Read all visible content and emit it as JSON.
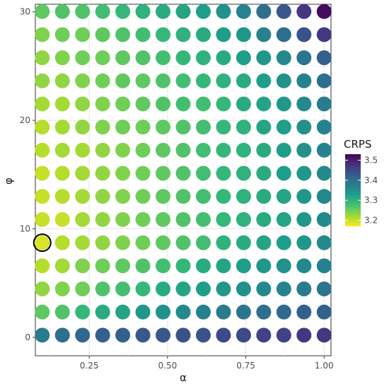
{
  "chart_data": {
    "type": "scatter",
    "xlabel": "α",
    "ylabel": "φ",
    "xlim": [
      0.078,
      1.022
    ],
    "ylim": [
      -1.7,
      30.7
    ],
    "x_ticks": [
      0.25,
      0.5,
      0.75,
      1.0
    ],
    "x_tick_labels": [
      "0.25",
      "0.50",
      "0.75",
      "1.00"
    ],
    "y_ticks": [
      0,
      10,
      20,
      30
    ],
    "y_tick_labels": [
      "0",
      "10",
      "20",
      "30"
    ],
    "grid": true,
    "x_values": [
      0.1,
      0.1643,
      0.2286,
      0.2929,
      0.3571,
      0.4214,
      0.4857,
      0.55,
      0.6143,
      0.6786,
      0.7429,
      0.8071,
      0.8714,
      0.9357,
      1.0
    ],
    "y_values": [
      0.2,
      2.33,
      4.46,
      6.59,
      8.72,
      10.86,
      12.99,
      15.12,
      17.25,
      19.38,
      21.51,
      23.64,
      25.77,
      27.9,
      30.03
    ],
    "crps_grid": [
      [
        3.38,
        3.4,
        3.41,
        3.42,
        3.42,
        3.43,
        3.43,
        3.44,
        3.44,
        3.45,
        3.45,
        3.46,
        3.46,
        3.47,
        3.47
      ],
      [
        3.26,
        3.27,
        3.29,
        3.31,
        3.32,
        3.34,
        3.35,
        3.36,
        3.37,
        3.38,
        3.39,
        3.4,
        3.41,
        3.42,
        3.42
      ],
      [
        3.23,
        3.24,
        3.25,
        3.27,
        3.28,
        3.29,
        3.31,
        3.32,
        3.33,
        3.34,
        3.35,
        3.36,
        3.37,
        3.38,
        3.39
      ],
      [
        3.21,
        3.22,
        3.24,
        3.25,
        3.26,
        3.27,
        3.28,
        3.29,
        3.31,
        3.32,
        3.33,
        3.34,
        3.35,
        3.36,
        3.37
      ],
      [
        3.19,
        3.21,
        3.22,
        3.23,
        3.24,
        3.25,
        3.26,
        3.27,
        3.28,
        3.3,
        3.31,
        3.32,
        3.33,
        3.34,
        3.36
      ],
      [
        3.2,
        3.2,
        3.22,
        3.23,
        3.24,
        3.25,
        3.26,
        3.27,
        3.28,
        3.29,
        3.3,
        3.31,
        3.32,
        3.34,
        3.36
      ],
      [
        3.2,
        3.21,
        3.22,
        3.23,
        3.24,
        3.25,
        3.26,
        3.27,
        3.28,
        3.29,
        3.3,
        3.31,
        3.32,
        3.34,
        3.36
      ],
      [
        3.2,
        3.21,
        3.22,
        3.23,
        3.24,
        3.25,
        3.26,
        3.27,
        3.28,
        3.29,
        3.3,
        3.31,
        3.33,
        3.34,
        3.36
      ],
      [
        3.21,
        3.22,
        3.22,
        3.23,
        3.24,
        3.25,
        3.26,
        3.27,
        3.28,
        3.29,
        3.3,
        3.31,
        3.33,
        3.35,
        3.37
      ],
      [
        3.21,
        3.22,
        3.23,
        3.24,
        3.25,
        3.25,
        3.26,
        3.27,
        3.28,
        3.29,
        3.3,
        3.32,
        3.33,
        3.35,
        3.37
      ],
      [
        3.22,
        3.22,
        3.23,
        3.24,
        3.25,
        3.26,
        3.27,
        3.28,
        3.28,
        3.29,
        3.31,
        3.32,
        3.34,
        3.36,
        3.38
      ],
      [
        3.23,
        3.23,
        3.24,
        3.25,
        3.26,
        3.26,
        3.27,
        3.28,
        3.29,
        3.3,
        3.31,
        3.33,
        3.35,
        3.37,
        3.4
      ],
      [
        3.23,
        3.24,
        3.25,
        3.25,
        3.26,
        3.27,
        3.28,
        3.29,
        3.3,
        3.31,
        3.33,
        3.34,
        3.36,
        3.39,
        3.42
      ],
      [
        3.24,
        3.25,
        3.25,
        3.26,
        3.27,
        3.28,
        3.29,
        3.3,
        3.31,
        3.33,
        3.34,
        3.37,
        3.4,
        3.44,
        3.47
      ],
      [
        3.26,
        3.27,
        3.27,
        3.28,
        3.29,
        3.3,
        3.31,
        3.32,
        3.33,
        3.35,
        3.37,
        3.4,
        3.43,
        3.47,
        3.52
      ]
    ],
    "highlight": {
      "x": 0.1,
      "y": 8.72
    },
    "legend": {
      "title": "CRPS",
      "placement": "right",
      "range": [
        3.17,
        3.53
      ],
      "ticks": [
        3.2,
        3.3,
        3.4,
        3.5
      ],
      "tick_labels": [
        "3.2",
        "3.3",
        "3.4",
        "3.5"
      ]
    },
    "colormap": "viridis",
    "colors": [
      "#fde725",
      "#b5de2b",
      "#6ece58",
      "#35b779",
      "#1f9e89",
      "#26828e",
      "#31688e",
      "#3e4989",
      "#482878",
      "#440154"
    ]
  }
}
